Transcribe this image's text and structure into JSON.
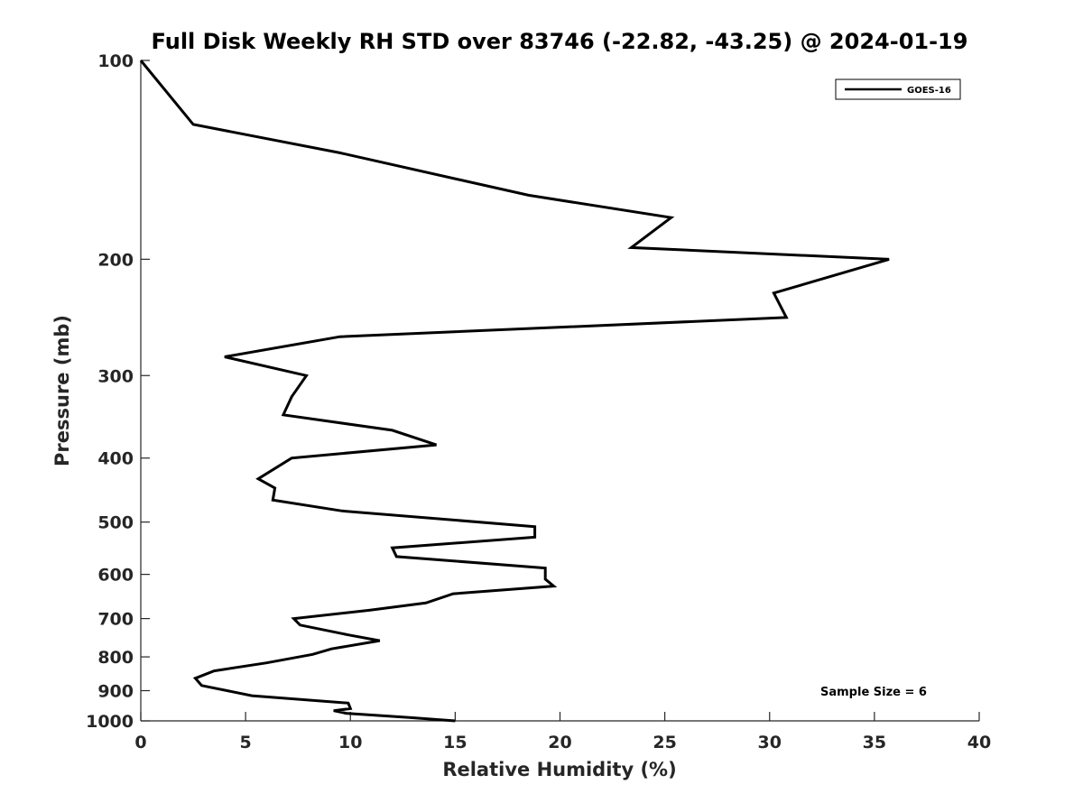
{
  "chart_data": {
    "type": "line",
    "title": "Full Disk Weekly RH STD over 83746 (-22.82, -43.25) @ 2024-01-19",
    "xlabel": "Relative Humidity (%)",
    "ylabel": "Pressure (mb)",
    "xlim": [
      0,
      40
    ],
    "ylim": [
      100,
      1000
    ],
    "yscale": "log",
    "y_reversed": true,
    "xticks": [
      0,
      5,
      10,
      15,
      20,
      25,
      30,
      35,
      40
    ],
    "yticks": [
      100,
      200,
      300,
      400,
      500,
      600,
      700,
      800,
      900,
      1000
    ],
    "grid": false,
    "legend_position": "top-right",
    "series": [
      {
        "name": "GOES-16",
        "color": "#000000",
        "points": [
          [
            0,
            100
          ],
          [
            2.5,
            125
          ],
          [
            9.5,
            138
          ],
          [
            18.5,
            160
          ],
          [
            25.3,
            173
          ],
          [
            23.4,
            192
          ],
          [
            35.7,
            200
          ],
          [
            30.2,
            225
          ],
          [
            30.8,
            245
          ],
          [
            9.5,
            262
          ],
          [
            4.0,
            281
          ],
          [
            7.9,
            300
          ],
          [
            7.2,
            323
          ],
          [
            6.8,
            344
          ],
          [
            12.0,
            363
          ],
          [
            14.1,
            382
          ],
          [
            7.2,
            400
          ],
          [
            5.6,
            430
          ],
          [
            6.4,
            444
          ],
          [
            6.3,
            463
          ],
          [
            9.6,
            481
          ],
          [
            18.8,
            508
          ],
          [
            18.8,
            527
          ],
          [
            12.0,
            547
          ],
          [
            12.2,
            564
          ],
          [
            19.3,
            587
          ],
          [
            19.3,
            610
          ],
          [
            19.7,
            625
          ],
          [
            14.9,
            642
          ],
          [
            13.6,
            663
          ],
          [
            10.9,
            680
          ],
          [
            7.3,
            700
          ],
          [
            7.6,
            716
          ],
          [
            9.9,
            741
          ],
          [
            11.4,
            756
          ],
          [
            9.1,
            778
          ],
          [
            8.2,
            793
          ],
          [
            6.0,
            817
          ],
          [
            3.5,
            840
          ],
          [
            2.6,
            862
          ],
          [
            2.9,
            884
          ],
          [
            5.3,
            916
          ],
          [
            9.9,
            940
          ],
          [
            10.0,
            958
          ],
          [
            9.2,
            965
          ],
          [
            9.8,
            974
          ],
          [
            12.8,
            988
          ],
          [
            15.0,
            1000
          ]
        ]
      }
    ],
    "annotations": [
      "Sample Size = 6"
    ]
  }
}
